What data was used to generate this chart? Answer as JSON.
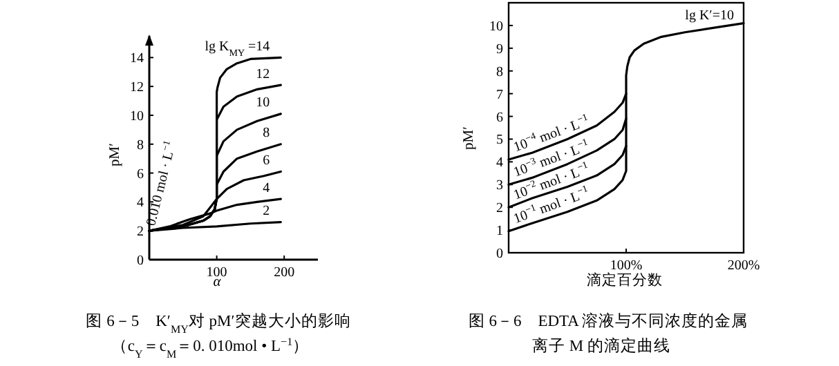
{
  "chart_data": [
    {
      "type": "line",
      "xlabel": "α",
      "ylabel": "pM′",
      "xlim": [
        0,
        250
      ],
      "ylim": [
        0,
        15.5
      ],
      "xticks": [
        100,
        200
      ],
      "yticks": [
        0,
        2,
        4,
        6,
        8,
        10,
        12,
        14
      ],
      "series": [
        {
          "name": "lg K$_{MY}$ =14",
          "color": "#000000",
          "x": [
            0,
            50,
            80,
            90,
            97,
            99,
            100,
            100,
            101,
            105,
            115,
            130,
            150,
            195
          ],
          "values": [
            2,
            2.3,
            2.7,
            3.0,
            3.5,
            4.0,
            4.2,
            11.6,
            11.9,
            12.6,
            13.2,
            13.6,
            13.9,
            14
          ]
        },
        {
          "name": "12",
          "color": "#000000",
          "x": [
            0,
            50,
            80,
            90,
            97,
            99,
            100,
            100,
            110,
            130,
            160,
            195
          ],
          "values": [
            2,
            2.3,
            2.7,
            3.0,
            3.5,
            4.0,
            4.2,
            9.7,
            10.6,
            11.3,
            11.8,
            12.1
          ]
        },
        {
          "name": "10",
          "color": "#000000",
          "x": [
            0,
            50,
            80,
            90,
            97,
            99,
            100,
            100,
            110,
            130,
            160,
            195
          ],
          "values": [
            2,
            2.3,
            2.7,
            3.0,
            3.5,
            4.0,
            4.2,
            7.2,
            8.2,
            9.0,
            9.6,
            10.1
          ]
        },
        {
          "name": "8",
          "color": "#000000",
          "x": [
            0,
            50,
            80,
            90,
            97,
            99,
            100,
            100,
            110,
            130,
            160,
            195
          ],
          "values": [
            2,
            2.3,
            2.7,
            3.0,
            3.5,
            4.0,
            4.2,
            5.2,
            6.1,
            7.0,
            7.5,
            8.0
          ]
        },
        {
          "name": "6",
          "color": "#000000",
          "x": [
            0,
            50,
            80,
            95,
            100,
            115,
            140,
            170,
            195
          ],
          "values": [
            2,
            2.4,
            3.0,
            3.9,
            4.2,
            4.9,
            5.5,
            5.8,
            6.1
          ]
        },
        {
          "name": "4",
          "color": "#000000",
          "x": [
            0,
            30,
            60,
            90,
            100,
            130,
            160,
            195
          ],
          "values": [
            2,
            2.3,
            2.8,
            3.2,
            3.4,
            3.8,
            4.0,
            4.2
          ]
        },
        {
          "name": "2",
          "color": "#000000",
          "x": [
            0,
            50,
            100,
            150,
            195
          ],
          "values": [
            2,
            2.2,
            2.3,
            2.5,
            2.6
          ]
        }
      ],
      "annotations": [
        "0.010 mol · L$^{−1}$",
        "图 6－5　K′$_{MY}$对 pM′突越大小的影响",
        "（c$_{Y}$＝c$_{M}$＝0. 010mol • L$^{−1}$）"
      ]
    },
    {
      "type": "line",
      "xlabel": "滴定百分数",
      "ylabel": "pM′",
      "xlim": [
        0,
        200
      ],
      "ylim": [
        0,
        11
      ],
      "xticks": [
        {
          "value": 100,
          "label": "100%"
        },
        {
          "value": 200,
          "label": "200%"
        }
      ],
      "yticks": [
        0,
        1,
        2,
        3,
        4,
        5,
        6,
        7,
        8,
        9,
        10
      ],
      "series": [
        {
          "name": "10$^{−4}$ mol · L$^{−1}$",
          "color": "#000000",
          "x": [
            0,
            20,
            50,
            75,
            90,
            97,
            100
          ],
          "values": [
            4.1,
            4.4,
            5.0,
            5.6,
            6.2,
            6.6,
            7.0
          ]
        },
        {
          "name": "10$^{−3}$ mol · L$^{−1}$",
          "color": "#000000",
          "x": [
            0,
            20,
            50,
            75,
            90,
            97,
            100
          ],
          "values": [
            3.0,
            3.3,
            3.9,
            4.5,
            5.0,
            5.4,
            5.9
          ]
        },
        {
          "name": "10$^{−2}$ mol · L$^{−1}$",
          "color": "#000000",
          "x": [
            0,
            20,
            50,
            75,
            90,
            97,
            100
          ],
          "values": [
            2.0,
            2.4,
            2.9,
            3.4,
            3.9,
            4.3,
            4.7
          ]
        },
        {
          "name": "10$^{−1}$ mol · L$^{−1}$",
          "color": "#000000",
          "x": [
            0,
            20,
            50,
            75,
            90,
            97,
            100,
            100,
            101,
            103,
            107,
            115,
            130,
            150,
            175,
            200
          ],
          "values": [
            0.95,
            1.3,
            1.8,
            2.3,
            2.8,
            3.2,
            3.6,
            7.8,
            8.2,
            8.6,
            8.9,
            9.2,
            9.5,
            9.7,
            9.9,
            10.1
          ]
        }
      ],
      "annotations": [
        "lg K′=10",
        "图 6－6　EDTA 溶液与不同浓度的金属",
        "离子 M 的滴定曲线"
      ]
    }
  ]
}
